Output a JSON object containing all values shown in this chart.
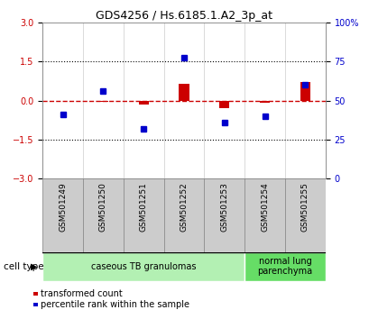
{
  "title": "GDS4256 / Hs.6185.1.A2_3p_at",
  "samples": [
    "GSM501249",
    "GSM501250",
    "GSM501251",
    "GSM501252",
    "GSM501253",
    "GSM501254",
    "GSM501255"
  ],
  "transformed_count": [
    0.0,
    -0.05,
    -0.15,
    0.65,
    -0.3,
    -0.08,
    0.7
  ],
  "percentile_rank": [
    -0.55,
    0.35,
    -1.1,
    1.65,
    -0.85,
    -0.6,
    0.6
  ],
  "red_color": "#cc0000",
  "blue_color": "#0000cc",
  "dashed_line_color": "#cc0000",
  "ylim": [
    -3,
    3
  ],
  "yticks_left": [
    -3,
    -1.5,
    0,
    1.5,
    3
  ],
  "yticks_right": [
    0,
    25,
    50,
    75,
    100
  ],
  "dotted_lines": [
    -1.5,
    1.5
  ],
  "cell_type_groups": [
    {
      "label": "caseous TB granulomas",
      "start": 0,
      "end": 5,
      "color": "#b3f0b3"
    },
    {
      "label": "normal lung\nparenchyma",
      "start": 5,
      "end": 7,
      "color": "#66dd66"
    }
  ],
  "cell_type_label": "cell type",
  "legend_items": [
    {
      "color": "#cc0000",
      "label": "transformed count"
    },
    {
      "color": "#0000cc",
      "label": "percentile rank within the sample"
    }
  ],
  "sample_box_color": "#cccccc",
  "sample_box_edge": "#888888"
}
